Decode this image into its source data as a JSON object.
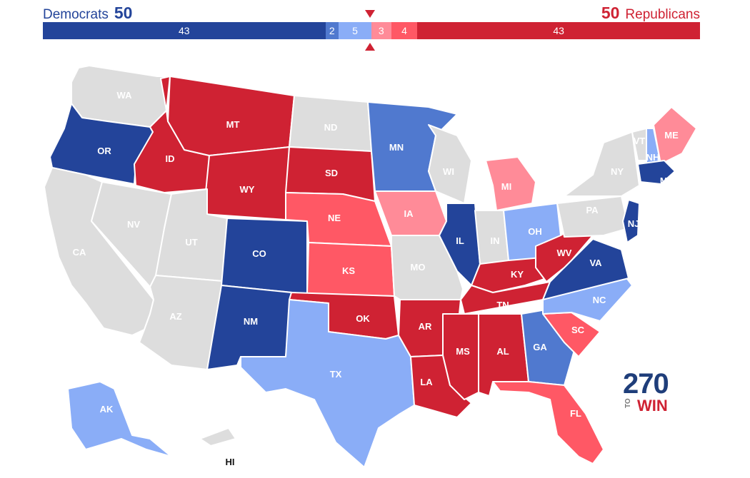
{
  "header": {
    "dem_label": "Democrats",
    "dem_total": "50",
    "rep_label": "Republicans",
    "rep_total": "50"
  },
  "balance": [
    {
      "label": "43",
      "count": 43,
      "rating": "safe-d"
    },
    {
      "label": "2",
      "count": 2,
      "rating": "likely-d"
    },
    {
      "label": "5",
      "count": 5,
      "rating": "lean-d"
    },
    {
      "label": "3",
      "count": 3,
      "rating": "lean-r"
    },
    {
      "label": "4",
      "count": 4,
      "rating": "likely-r"
    },
    {
      "label": "43",
      "count": 43,
      "rating": "safe-r"
    }
  ],
  "colors": {
    "safe-d": "#23449a",
    "likely-d": "#5079cf",
    "lean-d": "#8aadf7",
    "none": "#dddddd",
    "lean-r": "#ff8b98",
    "likely-r": "#ff5865",
    "safe-r": "#cf2233",
    "marker": "#cf2233"
  },
  "states": [
    {
      "abbr": "WA",
      "rating": "none"
    },
    {
      "abbr": "OR",
      "rating": "safe-d"
    },
    {
      "abbr": "CA",
      "rating": "none"
    },
    {
      "abbr": "NV",
      "rating": "none"
    },
    {
      "abbr": "ID",
      "rating": "safe-r"
    },
    {
      "abbr": "MT",
      "rating": "safe-r"
    },
    {
      "abbr": "WY",
      "rating": "safe-r"
    },
    {
      "abbr": "UT",
      "rating": "none"
    },
    {
      "abbr": "AZ",
      "rating": "none"
    },
    {
      "abbr": "CO",
      "rating": "safe-d"
    },
    {
      "abbr": "NM",
      "rating": "safe-d"
    },
    {
      "abbr": "ND",
      "rating": "none"
    },
    {
      "abbr": "SD",
      "rating": "safe-r"
    },
    {
      "abbr": "NE",
      "rating": "likely-r"
    },
    {
      "abbr": "KS",
      "rating": "likely-r"
    },
    {
      "abbr": "OK",
      "rating": "safe-r"
    },
    {
      "abbr": "TX",
      "rating": "lean-d"
    },
    {
      "abbr": "MN",
      "rating": "likely-d"
    },
    {
      "abbr": "IA",
      "rating": "lean-r"
    },
    {
      "abbr": "MO",
      "rating": "none"
    },
    {
      "abbr": "AR",
      "rating": "safe-r"
    },
    {
      "abbr": "LA",
      "rating": "safe-r"
    },
    {
      "abbr": "WI",
      "rating": "none"
    },
    {
      "abbr": "IL",
      "rating": "safe-d"
    },
    {
      "abbr": "MI",
      "rating": "lean-r"
    },
    {
      "abbr": "IN",
      "rating": "none"
    },
    {
      "abbr": "OH",
      "rating": "lean-d"
    },
    {
      "abbr": "KY",
      "rating": "safe-r"
    },
    {
      "abbr": "TN",
      "rating": "safe-r"
    },
    {
      "abbr": "MS",
      "rating": "safe-r"
    },
    {
      "abbr": "AL",
      "rating": "safe-r"
    },
    {
      "abbr": "GA",
      "rating": "likely-d"
    },
    {
      "abbr": "FL",
      "rating": "likely-r"
    },
    {
      "abbr": "SC",
      "rating": "likely-r"
    },
    {
      "abbr": "NC",
      "rating": "lean-d"
    },
    {
      "abbr": "VA",
      "rating": "safe-d"
    },
    {
      "abbr": "WV",
      "rating": "safe-r"
    },
    {
      "abbr": "PA",
      "rating": "none"
    },
    {
      "abbr": "NY",
      "rating": "none"
    },
    {
      "abbr": "VT",
      "rating": "none"
    },
    {
      "abbr": "NH",
      "rating": "lean-d"
    },
    {
      "abbr": "ME",
      "rating": "lean-r"
    },
    {
      "abbr": "MA",
      "rating": "safe-d"
    },
    {
      "abbr": "NJ",
      "rating": "safe-d"
    },
    {
      "abbr": "AK",
      "rating": "lean-d"
    },
    {
      "abbr": "HI",
      "rating": "none"
    }
  ],
  "logo": {
    "number": "270",
    "to": "TO",
    "win": "WIN"
  }
}
